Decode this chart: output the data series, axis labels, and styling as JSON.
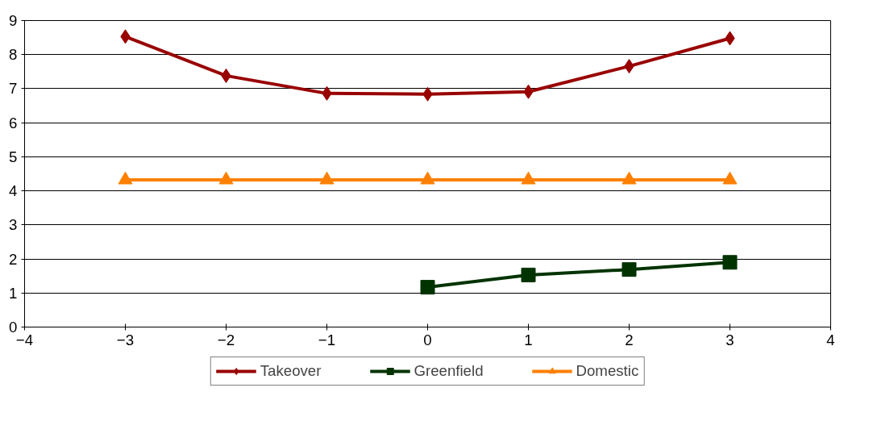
{
  "chart_data": {
    "type": "line",
    "x": [
      -3,
      -2,
      -1,
      0,
      1,
      2,
      3
    ],
    "series": [
      {
        "name": "Takeover",
        "color": "#990000",
        "marker": "diamond",
        "values": [
          8.53,
          7.38,
          6.86,
          6.84,
          6.91,
          7.66,
          8.48
        ]
      },
      {
        "name": "Greenfield",
        "color": "#003300",
        "marker": "square",
        "values": [
          null,
          null,
          null,
          1.17,
          1.53,
          1.69,
          1.9
        ]
      },
      {
        "name": "Domestic",
        "color": "#ff8000",
        "marker": "triangle",
        "values": [
          4.32,
          4.32,
          4.32,
          4.32,
          4.32,
          4.32,
          4.32
        ]
      }
    ],
    "xlim": [
      -4,
      4
    ],
    "xticks": [
      -4,
      -3,
      -2,
      -1,
      0,
      1,
      2,
      3,
      4
    ],
    "ylim": [
      0,
      9
    ],
    "yticks": [
      0,
      1,
      2,
      3,
      4,
      5,
      6,
      7,
      8,
      9
    ],
    "grid": "y",
    "legend": "bottom",
    "line_style": "solid"
  }
}
